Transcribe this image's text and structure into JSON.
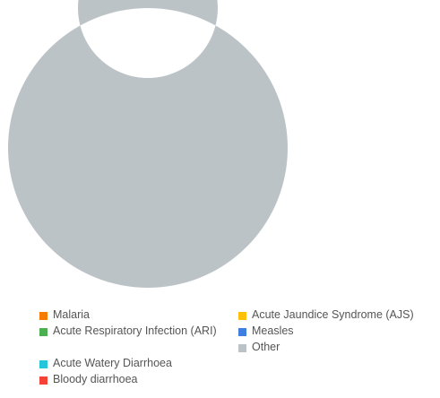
{
  "chart_data": {
    "type": "pie",
    "donut": true,
    "slices": [
      {
        "label": "Malaria",
        "value": 0,
        "color": "#f57c00"
      },
      {
        "label": "Acute Respiratory Infection (ARI)",
        "value": 0,
        "color": "#4caf50"
      },
      {
        "label": "Acute Watery Diarrhoea",
        "value": 0,
        "color": "#26c6da"
      },
      {
        "label": "Bloody diarrhoea",
        "value": 0,
        "color": "#f44336"
      },
      {
        "label": "Acute Jaundice Syndrome (AJS)",
        "value": 0,
        "color": "#ffc107"
      },
      {
        "label": "Measles",
        "value": 0,
        "color": "#3f7fe0"
      },
      {
        "label": "Other",
        "value": 100,
        "color": "#bcc3c7"
      }
    ],
    "legend_position": "bottom"
  }
}
